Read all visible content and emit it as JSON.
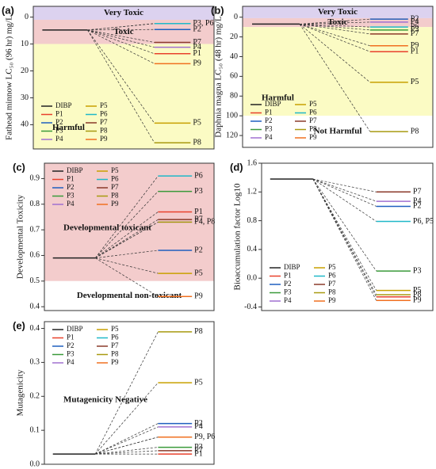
{
  "chart_data": [
    {
      "type": "level",
      "panel": "(a)",
      "ylabel": "Fathead minnow LC₅₀ (96 hr) mg/L",
      "invert": true,
      "ylim": [
        -4,
        49
      ],
      "yticks": [
        0,
        10,
        20,
        30,
        40
      ],
      "legend": "lower left",
      "regions": [
        {
          "label": "Very Toxic",
          "from": -4,
          "to": 1,
          "color": "#dcd2ef"
        },
        {
          "label": "Toxic",
          "from": 1,
          "to": 10,
          "color": "#f3cccc"
        },
        {
          "label": "Harmful",
          "from": 10,
          "to": 49,
          "color": "#fbfbc4"
        }
      ],
      "series": [
        {
          "name": "DIBP",
          "color": "#222222",
          "value": 4.8
        },
        {
          "name": "P1",
          "color": "#e8412c",
          "value": 13.6
        },
        {
          "name": "P2",
          "color": "#1f5fbf",
          "value": 4.6
        },
        {
          "name": "P3",
          "color": "#3a9a3a",
          "value": 2.4
        },
        {
          "name": "P4",
          "color": "#a070d0",
          "value": 11.2
        },
        {
          "name": "P5",
          "color": "#c8a000",
          "value": 39.4
        },
        {
          "name": "P6",
          "color": "#20b8c8",
          "value": 2.4
        },
        {
          "name": "P7",
          "color": "#8b3a2a",
          "value": 9.4
        },
        {
          "name": "P8",
          "color": "#a89a10",
          "value": 46.7
        },
        {
          "name": "P9",
          "color": "#f07020",
          "value": 17.3
        }
      ],
      "annotations": [
        {
          "text": "P3, P6",
          "at": "P6"
        },
        {
          "text": "P2",
          "at": "P2"
        },
        {
          "text": "P7",
          "at": "P7"
        },
        {
          "text": "P4",
          "at": "P4"
        },
        {
          "text": "P1",
          "at": "P1"
        },
        {
          "text": "P9",
          "at": "P9"
        },
        {
          "text": "P5",
          "at": "P5"
        },
        {
          "text": "P8",
          "at": "P8"
        }
      ]
    },
    {
      "type": "level",
      "panel": "(b)",
      "ylabel": "Daphnia magna LC₅₀ (48 hr) mg/L",
      "invert": true,
      "ylim": [
        -11,
        132
      ],
      "yticks": [
        0,
        20,
        40,
        60,
        80,
        100,
        120
      ],
      "legend": "lower left",
      "regions": [
        {
          "label": "Very Toxic",
          "from": -11,
          "to": 1,
          "color": "#dcd2ef"
        },
        {
          "label": "Toxic",
          "from": 1,
          "to": 10,
          "color": "#f3cccc"
        },
        {
          "label": "Harmful",
          "from": 10,
          "to": 100,
          "color": "#fbfbc4"
        },
        {
          "label": "Not Harmful",
          "from": 100,
          "to": 132,
          "color": "#ffffff"
        }
      ],
      "series": [
        {
          "name": "DIBP",
          "color": "#222222",
          "value": 7
        },
        {
          "name": "P1",
          "color": "#e8412c",
          "value": 35
        },
        {
          "name": "P2",
          "color": "#1f5fbf",
          "value": 2
        },
        {
          "name": "P3",
          "color": "#3a9a3a",
          "value": 13
        },
        {
          "name": "P4",
          "color": "#a070d0",
          "value": 5
        },
        {
          "name": "P5",
          "color": "#c8a000",
          "value": 66
        },
        {
          "name": "P6",
          "color": "#20b8c8",
          "value": 10
        },
        {
          "name": "P7",
          "color": "#8b3a2a",
          "value": 17
        },
        {
          "name": "P8",
          "color": "#a89a10",
          "value": 116
        },
        {
          "name": "P9",
          "color": "#f07020",
          "value": 29
        }
      ],
      "annotations": [
        {
          "text": "P2",
          "at": "P2"
        },
        {
          "text": "P4",
          "at": "P4"
        },
        {
          "text": "P6",
          "at": "P6"
        },
        {
          "text": "P3",
          "at": "P3"
        },
        {
          "text": "P7",
          "at": "P7"
        },
        {
          "text": "P9",
          "at": "P9"
        },
        {
          "text": "P1",
          "at": "P1"
        },
        {
          "text": "P5",
          "at": "P5"
        },
        {
          "text": "P8",
          "at": "P8"
        }
      ]
    },
    {
      "type": "level",
      "panel": "(c)",
      "ylabel": "Developmental Toxicity",
      "invert": false,
      "ylim": [
        0.385,
        0.96
      ],
      "yticks": [
        0.4,
        0.5,
        0.6,
        0.7,
        0.8,
        0.9
      ],
      "legend": "upper left",
      "regions": [
        {
          "label": "Developmental toxicant",
          "from": 0.5,
          "to": 0.96,
          "color": "#f3cccc"
        },
        {
          "label": "Developmental non-toxicant",
          "from": 0.385,
          "to": 0.5,
          "color": "#ffffff"
        }
      ],
      "series": [
        {
          "name": "DIBP",
          "color": "#222222",
          "value": 0.59
        },
        {
          "name": "P1",
          "color": "#e8412c",
          "value": 0.77
        },
        {
          "name": "P2",
          "color": "#1f5fbf",
          "value": 0.62
        },
        {
          "name": "P3",
          "color": "#3a9a3a",
          "value": 0.85
        },
        {
          "name": "P4",
          "color": "#a070d0",
          "value": 0.73
        },
        {
          "name": "P5",
          "color": "#c8a000",
          "value": 0.53
        },
        {
          "name": "P6",
          "color": "#20b8c8",
          "value": 0.91
        },
        {
          "name": "P7",
          "color": "#8b3a2a",
          "value": 0.74
        },
        {
          "name": "P8",
          "color": "#a89a10",
          "value": 0.73
        },
        {
          "name": "P9",
          "color": "#f07020",
          "value": 0.44
        }
      ],
      "annotations": [
        {
          "text": "P6",
          "at": "P6"
        },
        {
          "text": "P3",
          "at": "P3"
        },
        {
          "text": "P1",
          "at": "P1"
        },
        {
          "text": "P7",
          "at": "P7"
        },
        {
          "text": "P4, P8",
          "at": "P8"
        },
        {
          "text": "P2",
          "at": "P2"
        },
        {
          "text": "P5",
          "at": "P5"
        },
        {
          "text": "P9",
          "at": "P9"
        }
      ]
    },
    {
      "type": "level",
      "panel": "(d)",
      "ylabel": "Bioaccumulation factor Log10",
      "invert": false,
      "ylim": [
        -0.45,
        1.6
      ],
      "yticks": [
        -0.4,
        {
          "value": 0,
          "label": "0.0"
        },
        0.4,
        0.8,
        1.2,
        1.6
      ],
      "legend": "lower left",
      "regions": [],
      "series": [
        {
          "name": "DIBP",
          "color": "#222222",
          "value": 1.38
        },
        {
          "name": "P1",
          "color": "#e8412c",
          "value": -0.26
        },
        {
          "name": "P2",
          "color": "#1f5fbf",
          "value": 1.0
        },
        {
          "name": "P3",
          "color": "#3a9a3a",
          "value": 0.1
        },
        {
          "name": "P4",
          "color": "#a070d0",
          "value": 1.07
        },
        {
          "name": "P5",
          "color": "#c8a000",
          "value": -0.17
        },
        {
          "name": "P6",
          "color": "#20b8c8",
          "value": 0.79
        },
        {
          "name": "P7",
          "color": "#8b3a2a",
          "value": 1.2
        },
        {
          "name": "P8",
          "color": "#a89a10",
          "value": -0.23
        },
        {
          "name": "P9",
          "color": "#f07020",
          "value": -0.31
        }
      ],
      "annotations": [
        {
          "text": "P7",
          "at": "P7"
        },
        {
          "text": "P4",
          "at": "P4"
        },
        {
          "text": "P2",
          "at": "P2"
        },
        {
          "text": "P6, P5",
          "at": "P6"
        },
        {
          "text": "P3",
          "at": "P3"
        },
        {
          "text": "P5",
          "at": "P5"
        },
        {
          "text": "P8",
          "at": "P8"
        },
        {
          "text": "P9",
          "at": "P9"
        }
      ]
    },
    {
      "type": "level",
      "panel": "(e)",
      "ylabel": "Mutagenicity",
      "invert": false,
      "ylim": [
        0,
        0.42
      ],
      "yticks": [
        {
          "value": 0,
          "label": "0.0"
        },
        0.1,
        0.2,
        0.3,
        0.4
      ],
      "legend": "upper left",
      "regions": [
        {
          "label": "Mutagenicity Negative",
          "from": 0,
          "to": 0.42,
          "color": "#ffffff"
        }
      ],
      "series": [
        {
          "name": "DIBP",
          "color": "#222222",
          "value": 0.03
        },
        {
          "name": "P1",
          "color": "#e8412c",
          "value": 0.03
        },
        {
          "name": "P2",
          "color": "#1f5fbf",
          "value": 0.12
        },
        {
          "name": "P3",
          "color": "#3a9a3a",
          "value": 0.05
        },
        {
          "name": "P4",
          "color": "#a070d0",
          "value": 0.11
        },
        {
          "name": "P5",
          "color": "#c8a000",
          "value": 0.24
        },
        {
          "name": "P6",
          "color": "#20b8c8",
          "value": 0.08
        },
        {
          "name": "P7",
          "color": "#8b3a2a",
          "value": 0.04
        },
        {
          "name": "P8",
          "color": "#a89a10",
          "value": 0.39
        },
        {
          "name": "P9",
          "color": "#f07020",
          "value": 0.08
        }
      ],
      "annotations": [
        {
          "text": "P8",
          "at": "P8"
        },
        {
          "text": "P5",
          "at": "P5"
        },
        {
          "text": "P2",
          "at": "P2"
        },
        {
          "text": "P4",
          "at": "P4"
        },
        {
          "text": "P9, P6",
          "at": "P6"
        },
        {
          "text": "P3",
          "at": "P3"
        },
        {
          "text": "P7",
          "at": "P7"
        },
        {
          "text": "P1",
          "at": "P1"
        }
      ]
    }
  ]
}
